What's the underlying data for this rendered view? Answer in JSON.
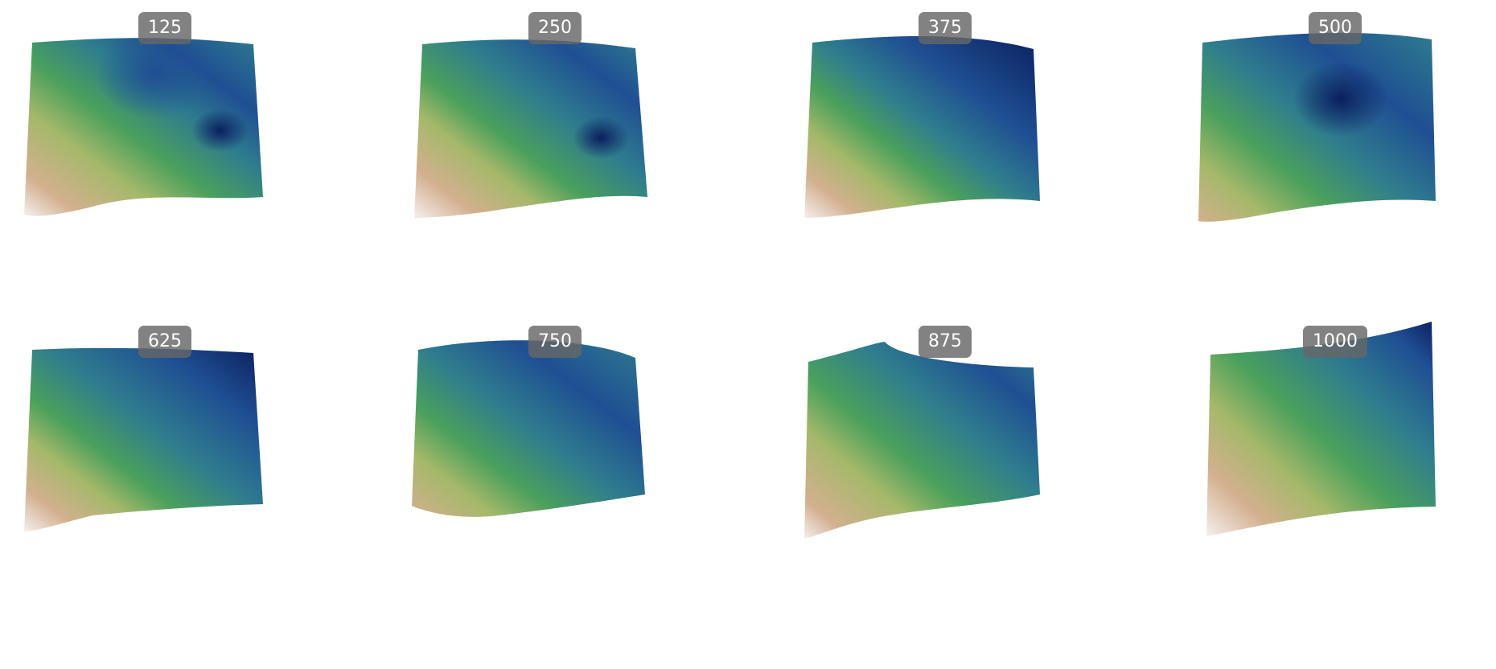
{
  "colormap": "gist_earth",
  "colors": {
    "deep": "#0b1f5e",
    "blue": "#1f4f93",
    "teal": "#2f7d8e",
    "green": "#4aa05c",
    "yellowgreen": "#a5b86a",
    "tan": "#d3b08f",
    "pale": "#f6efee"
  },
  "panels": [
    {
      "label": "125"
    },
    {
      "label": "250"
    },
    {
      "label": "375"
    },
    {
      "label": "500"
    },
    {
      "label": "625"
    },
    {
      "label": "750"
    },
    {
      "label": "875"
    },
    {
      "label": "1000"
    }
  ]
}
